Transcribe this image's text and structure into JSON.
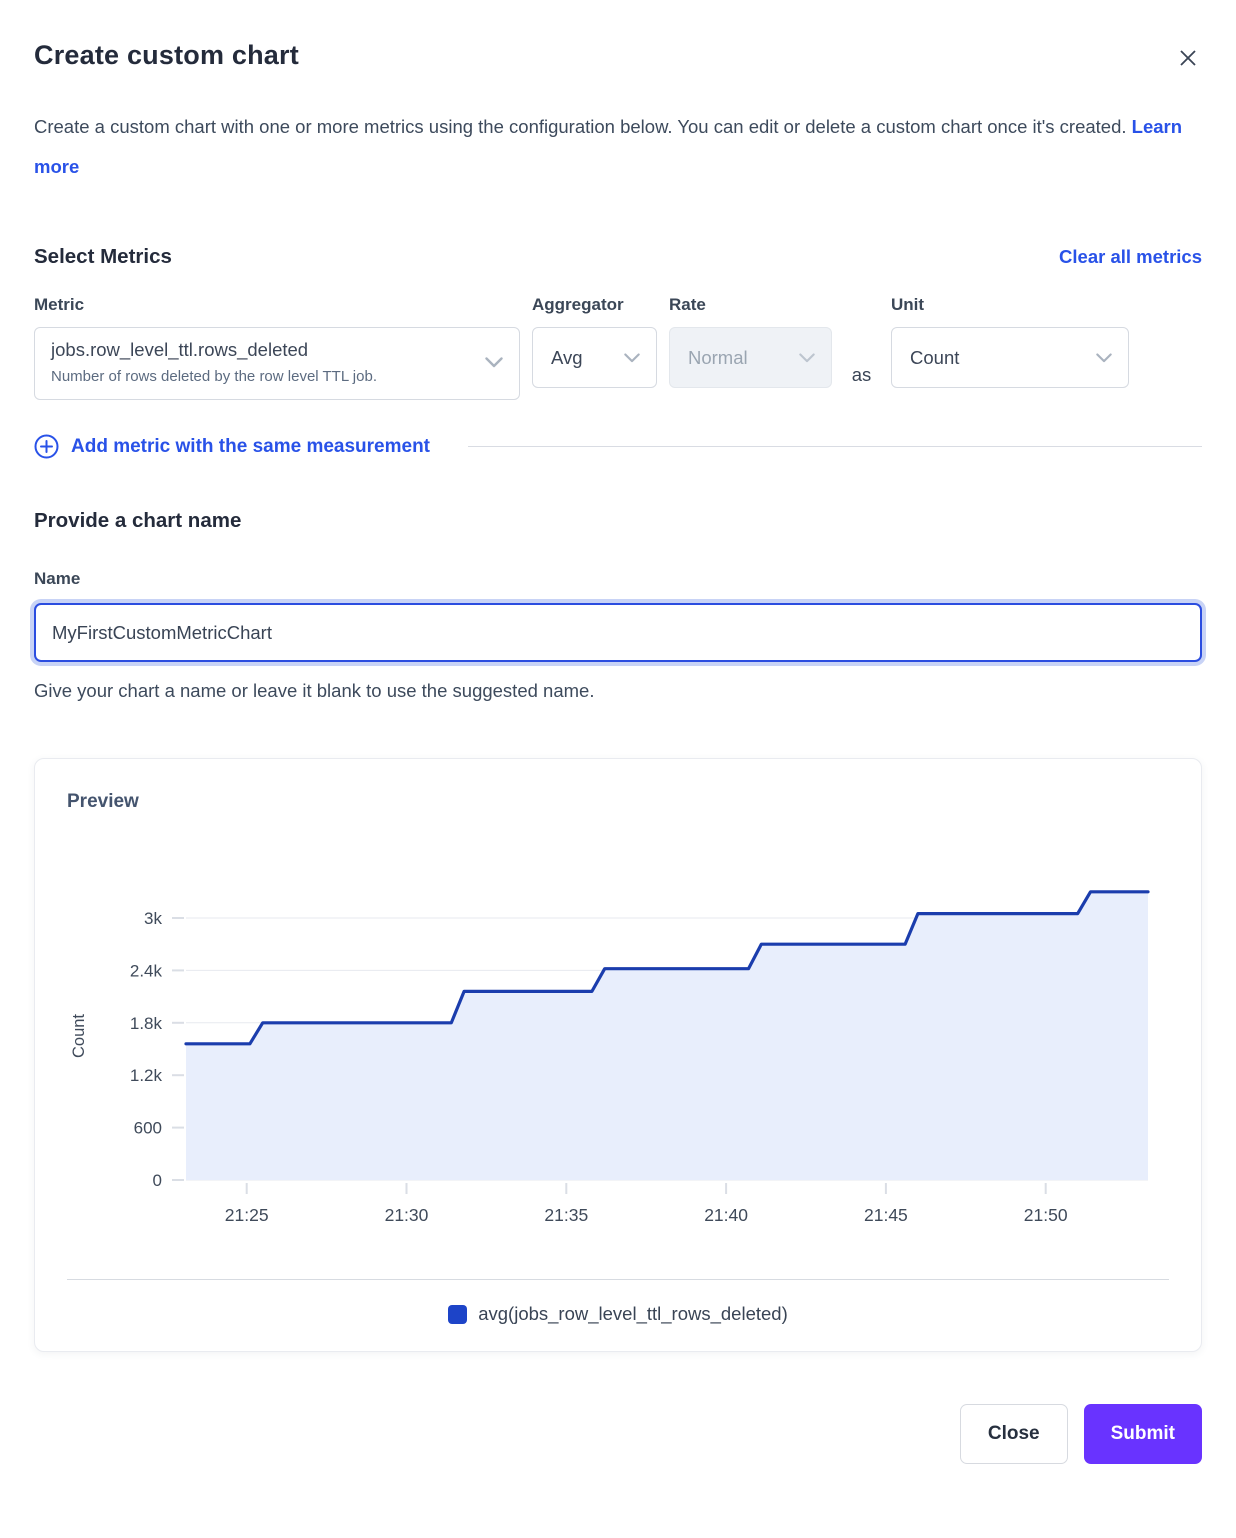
{
  "modal": {
    "title": "Create custom chart",
    "description": "Create a custom chart with one or more metrics using the configuration below. You can edit or delete a custom chart once it's created.",
    "learn_more": "Learn more"
  },
  "metrics_section": {
    "heading": "Select Metrics",
    "clear_all": "Clear all metrics",
    "metric_label": "Metric",
    "aggregator_label": "Aggregator",
    "rate_label": "Rate",
    "unit_label": "Unit",
    "as_text": "as",
    "metric_value": "jobs.row_level_ttl.rows_deleted",
    "metric_description": "Number of rows deleted by the row level TTL job.",
    "aggregator_value": "Avg",
    "rate_value": "Normal",
    "unit_value": "Count",
    "add_metric": "Add metric with the same measurement"
  },
  "name_section": {
    "heading": "Provide a chart name",
    "label": "Name",
    "value": "MyFirstCustomMetricChart",
    "helper": "Give your chart a name or leave it blank to use the suggested name."
  },
  "preview": {
    "heading": "Preview",
    "legend": "avg(jobs_row_level_ttl_rows_deleted)"
  },
  "footer": {
    "close": "Close",
    "submit": "Submit"
  },
  "colors": {
    "accent_blue": "#2952e8",
    "submit_purple": "#6933ff",
    "legend_swatch": "#1d44c8"
  },
  "chart_data": {
    "type": "area",
    "step": true,
    "title": "Preview",
    "xlabel": "",
    "ylabel": "Count",
    "grid": true,
    "legend_position": "bottom",
    "series": [
      {
        "name": "avg(jobs_row_level_ttl_rows_deleted)",
        "color": "#1b3dad"
      }
    ],
    "line_color": "#1b3dad",
    "fill_color": "#e8eefc",
    "x_unit": "minutes after 21:00",
    "x_range": [
      23.1,
      53.2
    ],
    "ylim": [
      0,
      3300
    ],
    "x_ticks": [
      {
        "t": 25,
        "label": "21:25"
      },
      {
        "t": 30,
        "label": "21:30"
      },
      {
        "t": 35,
        "label": "21:35"
      },
      {
        "t": 40,
        "label": "21:40"
      },
      {
        "t": 45,
        "label": "21:45"
      },
      {
        "t": 50,
        "label": "21:50"
      }
    ],
    "y_ticks": [
      {
        "v": 0,
        "label": "0"
      },
      {
        "v": 600,
        "label": "600"
      },
      {
        "v": 1200,
        "label": "1.2k"
      },
      {
        "v": 1800,
        "label": "1.8k"
      },
      {
        "v": 2400,
        "label": "2.4k"
      },
      {
        "v": 3000,
        "label": "3k"
      }
    ],
    "path_points": [
      [
        23.1,
        1560
      ],
      [
        25.1,
        1560
      ],
      [
        25.5,
        1800
      ],
      [
        31.4,
        1800
      ],
      [
        31.8,
        2160
      ],
      [
        35.8,
        2160
      ],
      [
        36.2,
        2420
      ],
      [
        40.7,
        2420
      ],
      [
        41.1,
        2700
      ],
      [
        45.6,
        2700
      ],
      [
        46.0,
        3050
      ],
      [
        51.0,
        3050
      ],
      [
        51.4,
        3300
      ],
      [
        53.2,
        3300
      ]
    ]
  }
}
